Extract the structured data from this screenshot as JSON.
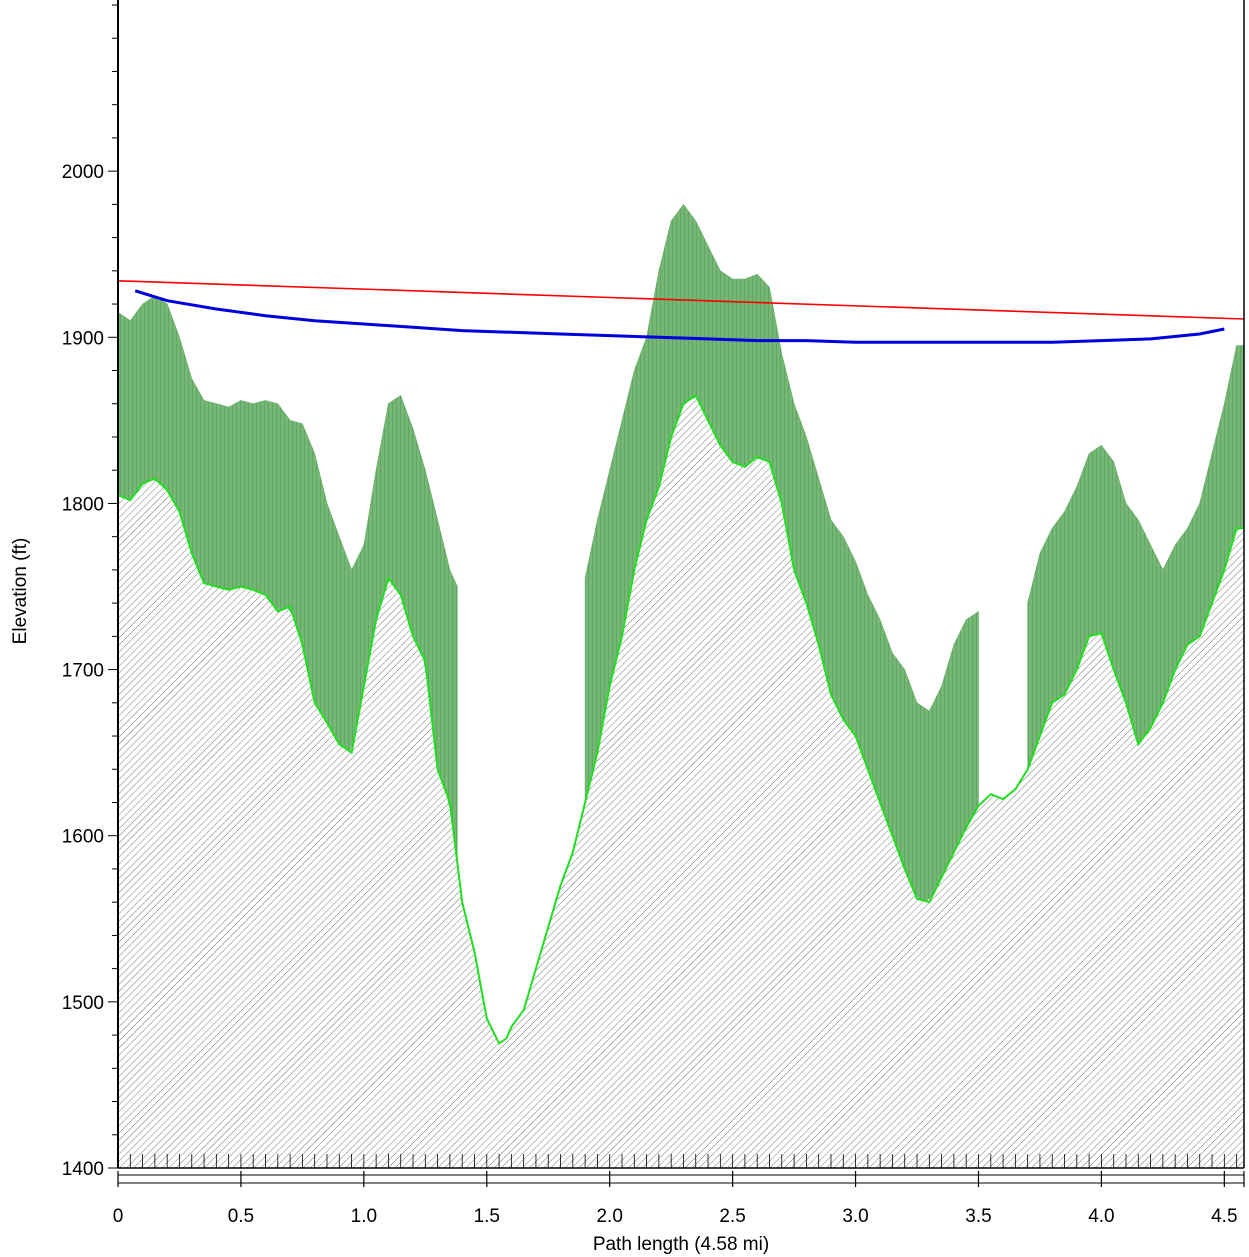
{
  "chart_data": {
    "type": "area",
    "title": "",
    "xlabel": "Path length (4.58 mi)",
    "ylabel": "Elevation (ft)",
    "xlim": [
      0,
      4.58
    ],
    "ylim": [
      1400,
      2100
    ],
    "x_ticks": [
      "0",
      "0.5",
      "1.0",
      "1.5",
      "2.0",
      "2.5",
      "3.0",
      "3.5",
      "4.0",
      "4.5"
    ],
    "x_tick_values": [
      0,
      0.5,
      1.0,
      1.5,
      2.0,
      2.5,
      3.0,
      3.5,
      4.0,
      4.5
    ],
    "y_ticks": [
      "1400",
      "1500",
      "1600",
      "1700",
      "1800",
      "1900",
      "2000"
    ],
    "y_tick_values": [
      1400,
      1500,
      1600,
      1700,
      1800,
      1900,
      2000
    ],
    "grid": false,
    "legend": "none",
    "colors": {
      "terrain_hatch": "#555555",
      "vegetation": "#6fb46f",
      "terrain_outline": "#22dd22",
      "line_of_sight": "#ff0000",
      "fresnel_curve": "#0000dd",
      "obstruction": "#000000",
      "yellow_fill": "#e0e040",
      "red_fill": "#d08070"
    },
    "series": [
      {
        "kind": "terrain",
        "x": [
          0,
          0.05,
          0.1,
          0.15,
          0.2,
          0.25,
          0.3,
          0.35,
          0.4,
          0.45,
          0.5,
          0.55,
          0.6,
          0.65,
          0.7,
          0.75,
          0.8,
          0.85,
          0.9,
          0.95,
          1.0,
          1.05,
          1.1,
          1.15,
          1.2,
          1.25,
          1.3,
          1.35,
          1.4,
          1.45,
          1.5,
          1.55,
          1.58,
          1.6,
          1.65,
          1.7,
          1.75,
          1.8,
          1.85,
          1.9,
          1.95,
          2.0,
          2.05,
          2.1,
          2.15,
          2.2,
          2.25,
          2.3,
          2.35,
          2.4,
          2.45,
          2.5,
          2.55,
          2.6,
          2.65,
          2.7,
          2.75,
          2.8,
          2.85,
          2.9,
          2.95,
          3.0,
          3.05,
          3.1,
          3.15,
          3.2,
          3.25,
          3.3,
          3.35,
          3.4,
          3.45,
          3.5,
          3.55,
          3.6,
          3.65,
          3.7,
          3.75,
          3.8,
          3.85,
          3.9,
          3.95,
          4.0,
          4.05,
          4.1,
          4.15,
          4.2,
          4.25,
          4.3,
          4.35,
          4.4,
          4.45,
          4.5,
          4.55,
          4.58
        ],
        "y": [
          1805,
          1802,
          1812,
          1815,
          1808,
          1795,
          1770,
          1752,
          1750,
          1748,
          1750,
          1748,
          1745,
          1735,
          1738,
          1715,
          1680,
          1668,
          1655,
          1650,
          1690,
          1730,
          1755,
          1745,
          1720,
          1705,
          1640,
          1620,
          1560,
          1530,
          1490,
          1475,
          1478,
          1485,
          1495,
          1520,
          1545,
          1570,
          1590,
          1620,
          1650,
          1690,
          1720,
          1760,
          1790,
          1810,
          1840,
          1860,
          1865,
          1850,
          1835,
          1825,
          1822,
          1828,
          1825,
          1800,
          1760,
          1740,
          1715,
          1685,
          1670,
          1660,
          1640,
          1620,
          1600,
          1580,
          1562,
          1560,
          1575,
          1590,
          1605,
          1618,
          1625,
          1622,
          1628,
          1640,
          1660,
          1680,
          1685,
          1700,
          1720,
          1722,
          1700,
          1680,
          1655,
          1665,
          1680,
          1700,
          1715,
          1720,
          1740,
          1760,
          1785,
          1785
        ]
      },
      {
        "kind": "vegetation_top",
        "x": [
          0,
          0.05,
          0.1,
          0.15,
          0.2,
          0.25,
          0.3,
          0.35,
          0.4,
          0.45,
          0.5,
          0.55,
          0.6,
          0.65,
          0.7,
          0.75,
          0.8,
          0.85,
          0.9,
          0.95,
          1.0,
          1.05,
          1.1,
          1.15,
          1.2,
          1.25,
          1.3,
          1.35,
          1.38,
          1.9,
          1.95,
          2.0,
          2.05,
          2.1,
          2.15,
          2.2,
          2.25,
          2.3,
          2.35,
          2.4,
          2.45,
          2.5,
          2.55,
          2.6,
          2.65,
          2.7,
          2.75,
          2.8,
          2.85,
          2.9,
          2.95,
          3.0,
          3.05,
          3.1,
          3.15,
          3.2,
          3.25,
          3.3,
          3.35,
          3.4,
          3.45,
          3.5,
          3.7,
          3.75,
          3.8,
          3.85,
          3.9,
          3.95,
          4.0,
          4.05,
          4.1,
          4.15,
          4.2,
          4.25,
          4.3,
          4.35,
          4.4,
          4.45,
          4.5,
          4.55,
          4.58
        ],
        "y": [
          1915,
          1910,
          1920,
          1925,
          1920,
          1900,
          1875,
          1862,
          1860,
          1858,
          1862,
          1860,
          1862,
          1860,
          1850,
          1848,
          1830,
          1800,
          1780,
          1760,
          1775,
          1820,
          1860,
          1865,
          1845,
          1820,
          1790,
          1760,
          1750,
          1755,
          1790,
          1820,
          1850,
          1880,
          1900,
          1940,
          1970,
          1980,
          1970,
          1955,
          1940,
          1935,
          1935,
          1938,
          1930,
          1890,
          1860,
          1840,
          1815,
          1790,
          1780,
          1765,
          1745,
          1730,
          1710,
          1700,
          1680,
          1675,
          1690,
          1715,
          1730,
          1735,
          1740,
          1770,
          1785,
          1795,
          1810,
          1830,
          1835,
          1825,
          1800,
          1790,
          1775,
          1760,
          1775,
          1785,
          1800,
          1830,
          1860,
          1895,
          1895
        ]
      },
      {
        "kind": "line_of_sight",
        "x": [
          0,
          4.58
        ],
        "y": [
          1934,
          1911
        ]
      },
      {
        "kind": "fresnel_curve",
        "x": [
          0.07,
          0.2,
          0.4,
          0.6,
          0.8,
          1.0,
          1.2,
          1.4,
          1.6,
          1.8,
          2.0,
          2.2,
          2.4,
          2.6,
          2.8,
          3.0,
          3.2,
          3.4,
          3.6,
          3.8,
          4.0,
          4.2,
          4.4,
          4.5
        ],
        "y": [
          1928,
          1922,
          1917,
          1913,
          1910,
          1908,
          1906,
          1904,
          1903,
          1902,
          1901,
          1900,
          1899,
          1898,
          1898,
          1897,
          1897,
          1897,
          1897,
          1897,
          1898,
          1899,
          1902,
          1905
        ]
      }
    ]
  }
}
